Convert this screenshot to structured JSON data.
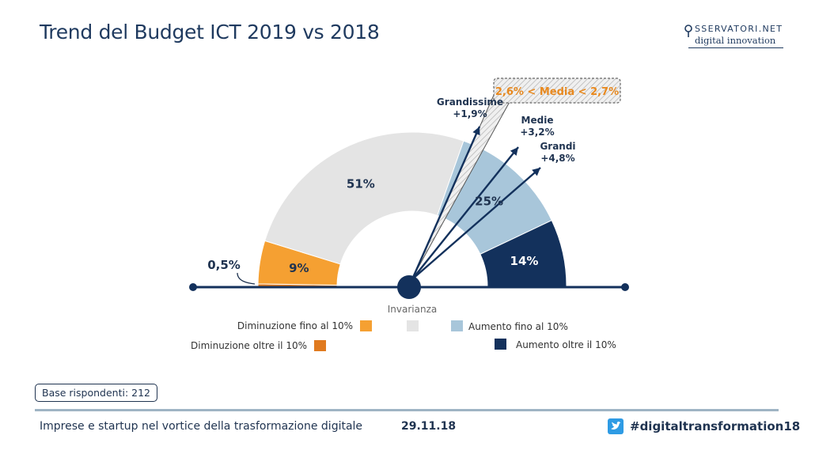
{
  "title": "Trend del Budget ICT 2019 vs 2018",
  "logo": {
    "main": "SSERVATORI.NET",
    "sub": "digital innovation"
  },
  "chart_data": {
    "type": "pie",
    "style": "semicircle",
    "segments": [
      {
        "key": "dim_oltre",
        "legend": "Diminuzione oltre il 10%",
        "value": 0.5,
        "label": "0,5%",
        "color": "#e07a1f"
      },
      {
        "key": "dim_fino",
        "legend": "Diminuzione fino al 10%",
        "value": 9,
        "label": "9%",
        "color": "#f5a032"
      },
      {
        "key": "invarianza",
        "legend": "Invarianza",
        "value": 51,
        "label": "51%",
        "color": "#e4e4e4"
      },
      {
        "key": "aum_fino",
        "legend": "Aumento fino al 10%",
        "value": 25,
        "label": "25%",
        "color": "#a8c6da"
      },
      {
        "key": "aum_oltre",
        "legend": "Aumento oltre il 10%",
        "value": 14,
        "label": "14%",
        "color": "#13315c"
      }
    ],
    "pointers": [
      {
        "name": "Grandissime",
        "value": "+1,9%"
      },
      {
        "name": "Medie",
        "value": "+3,2%"
      },
      {
        "name": "Grandi",
        "value": "+4,8%"
      }
    ],
    "average_box": "2,6% < Media < 2,7%"
  },
  "footer": {
    "base": "Base rispondenti: 212",
    "text": "Imprese e startup nel vortice della trasformazione digitale",
    "date": "29.11.18",
    "hashtag": "#digitaltransformation18"
  },
  "colors": {
    "accent_orange": "#e8891f",
    "navy": "#13315c",
    "twitter": "#2e9be4"
  },
  "icons": {
    "logo": "map-pin-icon",
    "twitter": "twitter-bird-icon"
  }
}
